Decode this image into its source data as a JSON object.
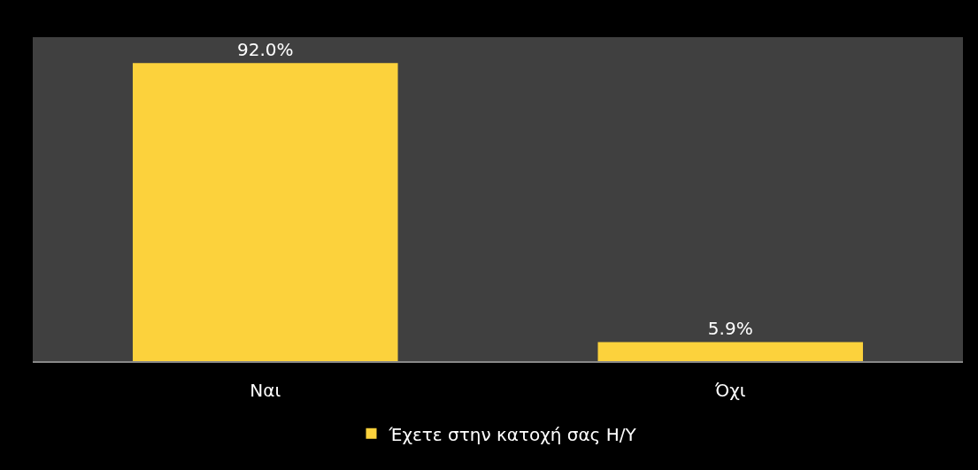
{
  "chart_data": {
    "type": "bar",
    "categories": [
      "Ναι",
      "Όχι"
    ],
    "series": [
      {
        "name": "Έχετε στην κατοχή σας Η/Υ",
        "color": "#fcd23c",
        "values": [
          92.0,
          5.9
        ],
        "value_labels": [
          "92.0%",
          "5.9%"
        ]
      }
    ],
    "ylim": [
      0,
      100
    ],
    "tick_labels": "x",
    "legend": "bottom"
  }
}
